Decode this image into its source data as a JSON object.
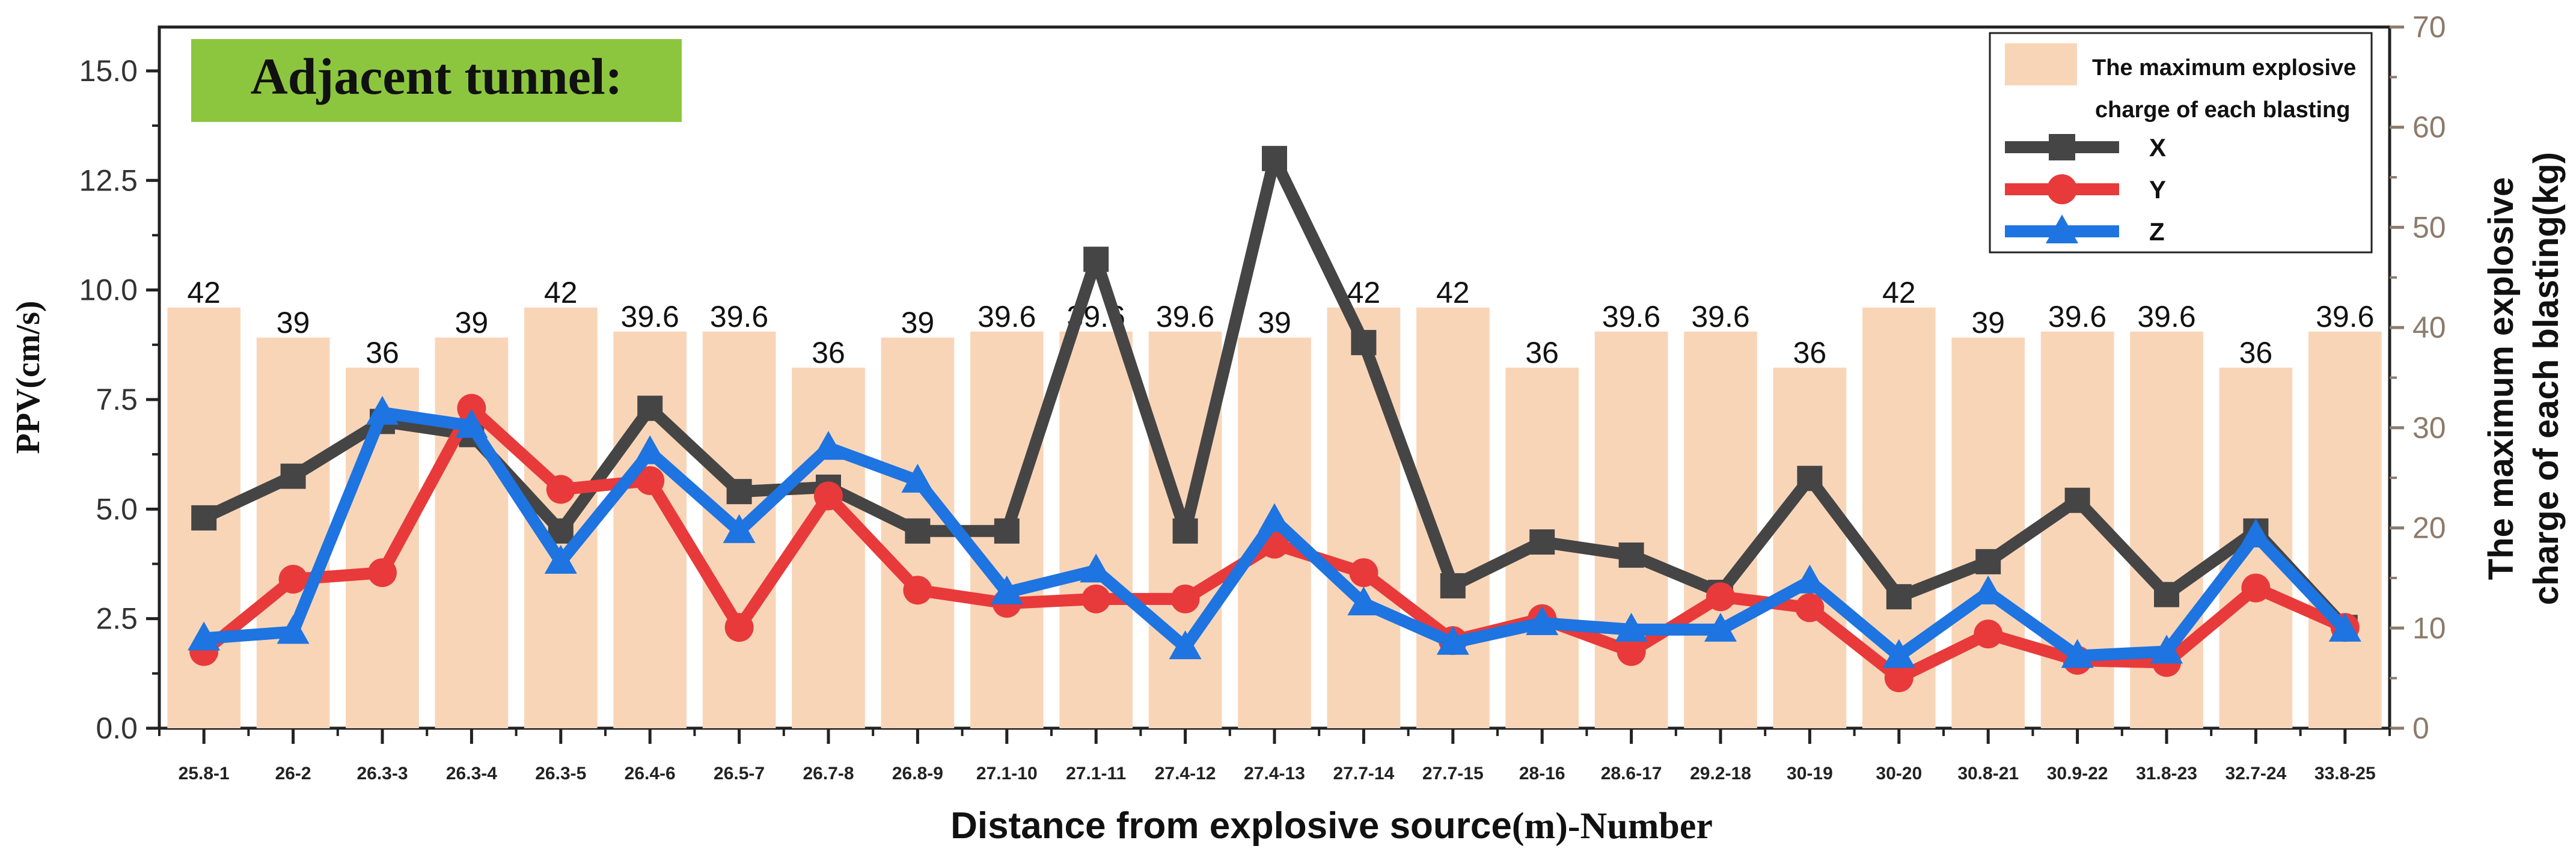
{
  "chart_data": {
    "type": "bar+line",
    "annotation": "Adjacent tunnel:",
    "annotation_color": "#8cc63f",
    "categories": [
      "25.8-1",
      "26-2",
      "26.3-3",
      "26.3-4",
      "26.3-5",
      "26.4-6",
      "26.5-7",
      "26.7-8",
      "26.8-9",
      "27.1-10",
      "27.1-11",
      "27.4-12",
      "27.4-13",
      "27.7-14",
      "27.7-15",
      "28-16",
      "28.6-17",
      "29.2-18",
      "30-19",
      "30-20",
      "30.8-21",
      "30.9-22",
      "31.8-23",
      "32.7-24",
      "33.8-25"
    ],
    "bars": {
      "name_line1": "The maximum explosive",
      "name_line2": "charge of each blasting",
      "color": "#f9d5b8",
      "values": [
        42,
        39,
        36,
        39,
        42,
        39.6,
        39.6,
        36,
        39,
        39.6,
        39.6,
        39.6,
        39,
        42,
        42,
        36,
        39.6,
        39.6,
        36,
        42,
        39,
        39.6,
        39.6,
        36,
        39.6
      ],
      "labels": [
        "42",
        "39",
        "36",
        "39",
        "42",
        "39.6",
        "39.6",
        "36",
        "39",
        "39.6",
        "39.6",
        "39.6",
        "39",
        "42",
        "42",
        "36",
        "39.6",
        "39.6",
        "36",
        "42",
        "39",
        "39.6",
        "39.6",
        "36",
        "39.6"
      ]
    },
    "series": [
      {
        "name": "X",
        "color": "#454545",
        "marker": "square",
        "values": [
          4.8,
          5.75,
          7.0,
          6.7,
          4.5,
          7.3,
          5.4,
          5.5,
          4.5,
          4.5,
          10.7,
          4.5,
          13.0,
          8.8,
          3.25,
          4.25,
          3.95,
          3.1,
          5.7,
          3.0,
          3.8,
          5.2,
          3.05,
          4.5,
          2.3
        ]
      },
      {
        "name": "Y",
        "color": "#e83a3a",
        "marker": "circle",
        "values": [
          1.75,
          3.4,
          3.55,
          7.3,
          5.45,
          5.65,
          2.3,
          5.3,
          3.15,
          2.85,
          2.95,
          2.95,
          4.2,
          3.55,
          2.0,
          2.5,
          1.75,
          3.0,
          2.75,
          1.15,
          2.15,
          1.55,
          1.5,
          3.2,
          2.3
        ]
      },
      {
        "name": "Z",
        "color": "#1e74e0",
        "marker": "triangle",
        "values": [
          2.05,
          2.2,
          7.2,
          6.9,
          3.8,
          6.3,
          4.5,
          6.4,
          5.65,
          3.1,
          3.6,
          1.85,
          4.75,
          2.85,
          1.95,
          2.4,
          2.25,
          2.25,
          3.35,
          1.65,
          3.1,
          1.65,
          1.75,
          4.4,
          2.25
        ]
      }
    ],
    "y_left": {
      "label": "PPV(cm/s)",
      "min": 0,
      "max": 16,
      "ticks": [
        0.0,
        2.5,
        5.0,
        7.5,
        10.0,
        12.5,
        15.0
      ],
      "tick_labels": [
        "0.0",
        "2.5",
        "5.0",
        "7.5",
        "10.0",
        "12.5",
        "15.0"
      ]
    },
    "y_right": {
      "label_line1": "The maximum explosive",
      "label_line2": "charge of each blasting(kg)",
      "min": 0,
      "max": 70,
      "ticks": [
        0,
        10,
        20,
        30,
        40,
        50,
        60,
        70
      ],
      "tick_labels": [
        "0",
        "10",
        "20",
        "30",
        "40",
        "50",
        "60",
        "70"
      ]
    },
    "xlabel_prefix": "Distance from explosive source",
    "xlabel_suffix": "(m)-Number",
    "legend_position": "top-right"
  }
}
